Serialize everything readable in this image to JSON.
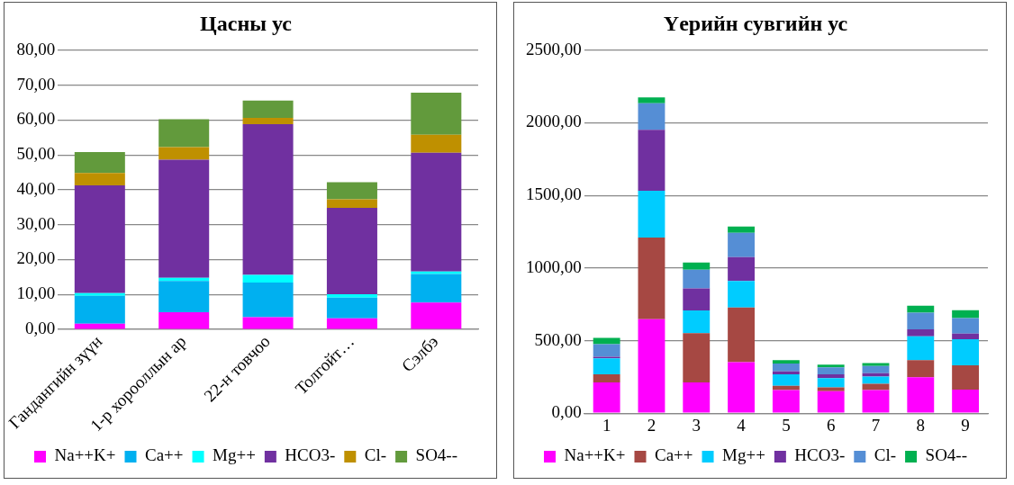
{
  "chart_data": [
    {
      "type": "bar",
      "title": "Цасны ус",
      "stacked": true,
      "grid": "y",
      "legend": "bottom",
      "categories": [
        "Гандангийн зүүн",
        "1-р хорооллын ар",
        "22-н товчоо",
        "Толгойт…",
        "Сэлбэ"
      ],
      "ylim": [
        0,
        80
      ],
      "yticks": [
        {
          "value": 0,
          "label": "0,00"
        },
        {
          "value": 10,
          "label": "10,00"
        },
        {
          "value": 20,
          "label": "20,00"
        },
        {
          "value": 30,
          "label": "30,00"
        },
        {
          "value": 40,
          "label": "40,00"
        },
        {
          "value": 50,
          "label": "50,00"
        },
        {
          "value": 60,
          "label": "60,00"
        },
        {
          "value": 70,
          "label": "70,00"
        },
        {
          "value": 80,
          "label": "80,00"
        }
      ],
      "series": [
        {
          "name": "Na++K+",
          "color": "#ff00ff",
          "values": [
            1.6,
            4.9,
            3.5,
            3.2,
            7.7
          ]
        },
        {
          "name": "Ca++",
          "color": "#00b0f0",
          "values": [
            8.0,
            9.0,
            9.9,
            5.9,
            8.2
          ]
        },
        {
          "name": "Mg++",
          "color": "#00ffff",
          "values": [
            0.8,
            0.9,
            2.2,
            1.0,
            0.7
          ]
        },
        {
          "name": "HCO3-",
          "color": "#7030a0",
          "values": [
            30.9,
            33.8,
            43.2,
            24.7,
            34.0
          ]
        },
        {
          "name": "Cl-",
          "color": "#bf9000",
          "values": [
            3.5,
            3.6,
            1.8,
            2.5,
            5.2
          ]
        },
        {
          "name": "SO4--",
          "color": "#629a3c",
          "values": [
            6.0,
            8.0,
            5.0,
            4.9,
            12.0
          ]
        }
      ]
    },
    {
      "type": "bar",
      "title": "Үерийн сувгийн ус",
      "stacked": true,
      "grid": "y",
      "legend": "bottom",
      "categories": [
        "1",
        "2",
        "3",
        "4",
        "5",
        "6",
        "7",
        "8",
        "9"
      ],
      "ylim": [
        0,
        2500
      ],
      "yticks": [
        {
          "value": 0,
          "label": "0,00"
        },
        {
          "value": 500,
          "label": "500,00"
        },
        {
          "value": 1000,
          "label": "1000,00"
        },
        {
          "value": 1500,
          "label": "1500,00"
        },
        {
          "value": 2000,
          "label": "2000,00"
        },
        {
          "value": 2500,
          "label": "2500,00"
        }
      ],
      "series": [
        {
          "name": "Na++K+",
          "color": "#ff00ff",
          "values": [
            212,
            648,
            212,
            352,
            160,
            152,
            160,
            248,
            162
          ]
        },
        {
          "name": "Ca++",
          "color": "#a64843",
          "values": [
            56,
            562,
            340,
            376,
            28,
            26,
            42,
            117,
            168
          ]
        },
        {
          "name": "Mg++",
          "color": "#00ccff",
          "values": [
            110,
            322,
            156,
            182,
            80,
            64,
            50,
            165,
            180
          ]
        },
        {
          "name": "HCO3-",
          "color": "#7030a0",
          "values": [
            10,
            420,
            152,
            165,
            20,
            26,
            23,
            48,
            38
          ]
        },
        {
          "name": "Cl-",
          "color": "#558ed5",
          "values": [
            87,
            183,
            128,
            167,
            54,
            47,
            50,
            114,
            107
          ]
        },
        {
          "name": "SO4--",
          "color": "#00b050",
          "values": [
            43,
            40,
            50,
            43,
            23,
            20,
            20,
            48,
            55
          ]
        }
      ]
    }
  ]
}
